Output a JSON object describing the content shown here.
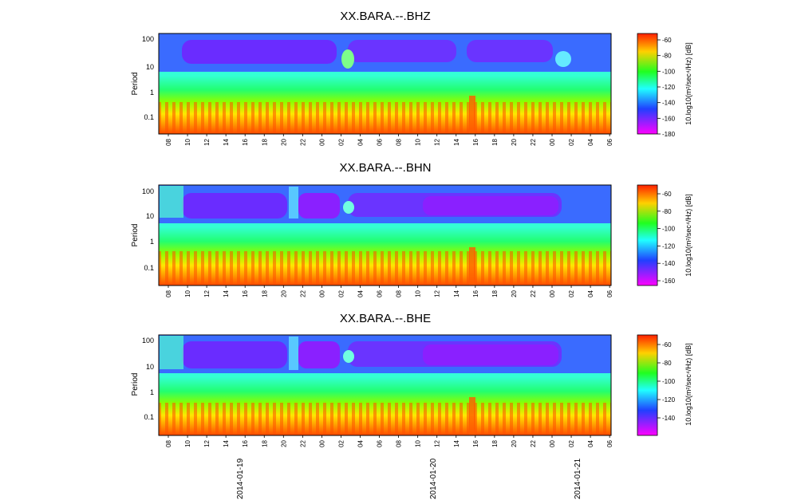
{
  "chart_data": [
    {
      "type": "heatmap",
      "title": "XX.BARA.--.BHZ",
      "ylabel": "Period",
      "yscale": "log",
      "yticks": [
        "100",
        "10",
        "1",
        "0.1"
      ],
      "yrange": [
        0.02,
        130
      ],
      "xticks": [
        "08",
        "10",
        "12",
        "14",
        "16",
        "18",
        "20",
        "22",
        "00",
        "02",
        "04",
        "06",
        "08",
        "10",
        "12",
        "14",
        "16",
        "18",
        "20",
        "22",
        "00",
        "02",
        "04",
        "06"
      ],
      "colorbar": {
        "label": "10.log10(m²/sec⁴/Hz) [dB]",
        "ticks": [
          "-60",
          "-80",
          "-100",
          "-120",
          "-140",
          "-160",
          "-180"
        ],
        "range": [
          -180,
          -50
        ]
      }
    },
    {
      "type": "heatmap",
      "title": "XX.BARA.--.BHN",
      "ylabel": "Period",
      "yscale": "log",
      "yticks": [
        "100",
        "10",
        "1",
        "0.1"
      ],
      "yrange": [
        0.02,
        130
      ],
      "xticks": [
        "08",
        "10",
        "12",
        "14",
        "16",
        "18",
        "20",
        "22",
        "00",
        "02",
        "04",
        "06",
        "08",
        "10",
        "12",
        "14",
        "16",
        "18",
        "20",
        "22",
        "00",
        "02",
        "04",
        "06"
      ],
      "colorbar": {
        "label": "10.log10(m²/sec⁴/Hz) [dB]",
        "ticks": [
          "-60",
          "-80",
          "-100",
          "-120",
          "-140",
          "-160"
        ],
        "range": [
          -165,
          -50
        ]
      }
    },
    {
      "type": "heatmap",
      "title": "XX.BARA.--.BHE",
      "ylabel": "Period",
      "yscale": "log",
      "yticks": [
        "100",
        "10",
        "1",
        "0.1"
      ],
      "yrange": [
        0.02,
        130
      ],
      "xticks": [
        "08",
        "10",
        "12",
        "14",
        "16",
        "18",
        "20",
        "22",
        "00",
        "02",
        "04",
        "06",
        "08",
        "10",
        "12",
        "14",
        "16",
        "18",
        "20",
        "22",
        "00",
        "02",
        "04",
        "06"
      ],
      "date_labels": [
        "2014-01-19",
        "2014-01-20",
        "2014-01-21"
      ],
      "colorbar": {
        "label": "10.log10(m²/sec⁴/Hz) [dB]",
        "ticks": [
          "-60",
          "-80",
          "-100",
          "-120",
          "-140"
        ],
        "range": [
          -155,
          -50
        ]
      }
    }
  ]
}
